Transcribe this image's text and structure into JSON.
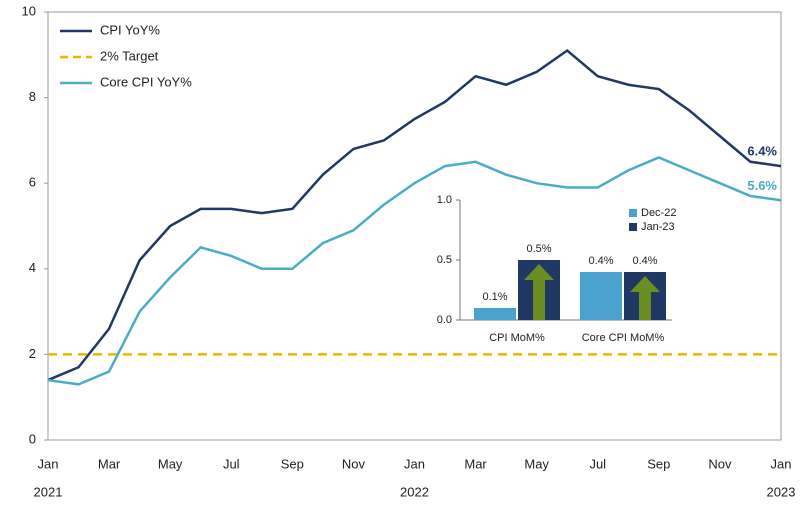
{
  "chart_data": [
    {
      "type": "line",
      "categories": [
        "Jan",
        null,
        "Mar",
        null,
        "May",
        null,
        "Jul",
        null,
        "Sep",
        null,
        "Nov",
        null,
        "Jan",
        null,
        "Mar",
        null,
        "May",
        null,
        "Jul",
        null,
        "Sep",
        null,
        "Nov",
        null,
        "Jan"
      ],
      "years": [
        "2021",
        "2022",
        "2023"
      ],
      "series": [
        {
          "name": "CPI YoY%",
          "color": "#1f3864",
          "values": [
            1.4,
            1.7,
            2.6,
            4.2,
            5.0,
            5.4,
            5.4,
            5.3,
            5.4,
            6.2,
            6.8,
            7.0,
            7.5,
            7.9,
            8.5,
            8.3,
            8.6,
            9.1,
            8.5,
            8.3,
            8.2,
            7.7,
            7.1,
            6.5,
            6.4
          ],
          "end_label": "6.4%"
        },
        {
          "name": "Core CPI YoY%",
          "color": "#4bacc6",
          "values": [
            1.4,
            1.3,
            1.6,
            3.0,
            3.8,
            4.5,
            4.3,
            4.0,
            4.0,
            4.6,
            4.9,
            5.5,
            6.0,
            6.4,
            6.5,
            6.2,
            6.0,
            5.9,
            5.9,
            6.3,
            6.6,
            6.3,
            6.0,
            5.7,
            5.6
          ],
          "end_label": "5.6%"
        }
      ],
      "reference_line": {
        "name": "2% Target",
        "value": 2,
        "color": "#f0b400"
      },
      "ylim": [
        0,
        10
      ],
      "yticks": [
        0,
        2,
        4,
        6,
        8,
        10
      ]
    },
    {
      "type": "bar",
      "categories": [
        "CPI MoM%",
        "Core CPI MoM%"
      ],
      "series": [
        {
          "name": "Dec-22",
          "color": "#4aa3cf",
          "values": [
            0.1,
            0.4
          ],
          "value_labels": [
            "0.1%",
            "0.4%"
          ]
        },
        {
          "name": "Jan-23",
          "color": "#1f3864",
          "values": [
            0.5,
            0.4
          ],
          "value_labels": [
            "0.5%",
            "0.4%"
          ]
        }
      ],
      "ylim": [
        0,
        1
      ],
      "yticks": [
        {
          "value": 0,
          "label": "0.0"
        },
        {
          "value": 0.5,
          "label": "0.5"
        },
        {
          "value": 1,
          "label": "1.0"
        }
      ]
    }
  ]
}
